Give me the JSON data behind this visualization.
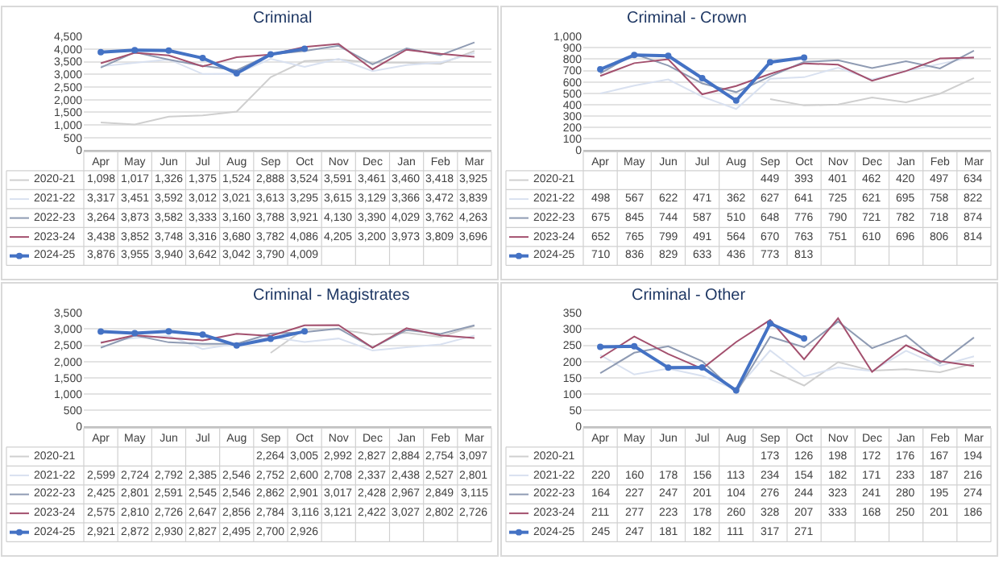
{
  "chart_data": [
    {
      "type": "line",
      "title": "Criminal",
      "categories": [
        "Apr",
        "May",
        "Jun",
        "Jul",
        "Aug",
        "Sep",
        "Oct",
        "Nov",
        "Dec",
        "Jan",
        "Feb",
        "Mar"
      ],
      "ylim": [
        0,
        4500
      ],
      "yticks": [
        0,
        500,
        {
          "value": 1000,
          "label": "1,000"
        },
        {
          "value": 1500,
          "label": "1,500"
        },
        {
          "value": 2000,
          "label": "2,000"
        },
        {
          "value": 2500,
          "label": "2,500"
        },
        {
          "value": 3000,
          "label": "3,000"
        },
        {
          "value": 3500,
          "label": "3,500"
        },
        {
          "value": 4000,
          "label": "4,000"
        },
        {
          "value": 4500,
          "label": "4,500"
        }
      ],
      "grid": "y",
      "legend": "bottom",
      "marker": "none",
      "series": [
        {
          "name": "2020-21",
          "color": "#cfcfcf",
          "values": [
            1098,
            1017,
            1326,
            1375,
            1524,
            2888,
            3524,
            3591,
            3461,
            3460,
            3418,
            3925
          ],
          "value_labels": [
            "1,098",
            "1,017",
            "1,326",
            "1,375",
            "1,524",
            "2,888",
            "3,524",
            "3,591",
            "3,461",
            "3,460",
            "3,418",
            "3,925"
          ]
        },
        {
          "name": "2021-22",
          "color": "#d9e1f0",
          "values": [
            3317,
            3451,
            3592,
            3012,
            3021,
            3613,
            3295,
            3615,
            3129,
            3366,
            3472,
            3839
          ],
          "value_labels": [
            "3,317",
            "3,451",
            "3,592",
            "3,012",
            "3,021",
            "3,613",
            "3,295",
            "3,615",
            "3,129",
            "3,366",
            "3,472",
            "3,839"
          ]
        },
        {
          "name": "2022-23",
          "color": "#8f9bb3",
          "values": [
            3264,
            3873,
            3582,
            3333,
            3160,
            3788,
            3921,
            4130,
            3390,
            4029,
            3762,
            4263
          ],
          "value_labels": [
            "3,264",
            "3,873",
            "3,582",
            "3,333",
            "3,160",
            "3,788",
            "3,921",
            "4,130",
            "3,390",
            "4,029",
            "3,762",
            "4,263"
          ]
        },
        {
          "name": "2023-24",
          "color": "#a3506e",
          "values": [
            3438,
            3852,
            3748,
            3316,
            3680,
            3782,
            4086,
            4205,
            3200,
            3973,
            3809,
            3696
          ],
          "value_labels": [
            "3,438",
            "3,852",
            "3,748",
            "3,316",
            "3,680",
            "3,782",
            "4,086",
            "4,205",
            "3,200",
            "3,973",
            "3,809",
            "3,696"
          ]
        },
        {
          "name": "2024-25",
          "color": "#4472c4",
          "marker": "circle",
          "values": [
            3876,
            3955,
            3940,
            3642,
            3042,
            3790,
            4009,
            null,
            null,
            null,
            null,
            null
          ],
          "value_labels": [
            "3,876",
            "3,955",
            "3,940",
            "3,642",
            "3,042",
            "3,790",
            "4,009",
            null,
            null,
            null,
            null,
            null
          ]
        }
      ]
    },
    {
      "type": "line",
      "title": "Criminal - Crown",
      "categories": [
        "Apr",
        "May",
        "Jun",
        "Jul",
        "Aug",
        "Sep",
        "Oct",
        "Nov",
        "Dec",
        "Jan",
        "Feb",
        "Mar"
      ],
      "ylim": [
        0,
        1000
      ],
      "yticks": [
        0,
        100,
        200,
        300,
        400,
        500,
        600,
        700,
        800,
        900,
        {
          "value": 1000,
          "label": "1,000"
        }
      ],
      "grid": "y",
      "legend": "bottom",
      "data_labels": true,
      "marker": "none",
      "series": [
        {
          "name": "2020-21",
          "color": "#cfcfcf",
          "values": [
            null,
            null,
            null,
            null,
            null,
            449,
            393,
            401,
            462,
            420,
            497,
            634
          ]
        },
        {
          "name": "2021-22",
          "color": "#d9e1f0",
          "values": [
            498,
            567,
            622,
            471,
            362,
            627,
            641,
            725,
            621,
            695,
            758,
            822
          ]
        },
        {
          "name": "2022-23",
          "color": "#8f9bb3",
          "values": [
            675,
            845,
            744,
            587,
            510,
            648,
            776,
            790,
            721,
            782,
            718,
            874
          ]
        },
        {
          "name": "2023-24",
          "color": "#a3506e",
          "values": [
            652,
            765,
            799,
            491,
            564,
            670,
            763,
            751,
            610,
            696,
            806,
            814
          ]
        },
        {
          "name": "2024-25",
          "color": "#4472c4",
          "marker": "circle",
          "values": [
            710,
            836,
            829,
            633,
            436,
            773,
            813,
            null,
            null,
            null,
            null,
            null
          ]
        }
      ]
    },
    {
      "type": "line",
      "title": "Criminal - Magistrates",
      "categories": [
        "Apr",
        "May",
        "Jun",
        "Jul",
        "Aug",
        "Sep",
        "Oct",
        "Nov",
        "Dec",
        "Jan",
        "Feb",
        "Mar"
      ],
      "ylim": [
        0,
        3500
      ],
      "yticks": [
        0,
        500,
        {
          "value": 1000,
          "label": "1,000"
        },
        {
          "value": 1500,
          "label": "1,500"
        },
        {
          "value": 2000,
          "label": "2,000"
        },
        {
          "value": 2500,
          "label": "2,500"
        },
        {
          "value": 3000,
          "label": "3,000"
        },
        {
          "value": 3500,
          "label": "3,500"
        }
      ],
      "grid": "y",
      "legend": "bottom",
      "marker": "none",
      "series": [
        {
          "name": "2020-21",
          "color": "#cfcfcf",
          "values": [
            null,
            null,
            null,
            null,
            null,
            2264,
            3005,
            2992,
            2827,
            2884,
            2754,
            3097
          ],
          "value_labels": [
            null,
            null,
            null,
            null,
            null,
            "2,264",
            "3,005",
            "2,992",
            "2,827",
            "2,884",
            "2,754",
            "3,097"
          ]
        },
        {
          "name": "2021-22",
          "color": "#d9e1f0",
          "values": [
            2599,
            2724,
            2792,
            2385,
            2546,
            2752,
            2600,
            2708,
            2337,
            2438,
            2527,
            2801
          ],
          "value_labels": [
            "2,599",
            "2,724",
            "2,792",
            "2,385",
            "2,546",
            "2,752",
            "2,600",
            "2,708",
            "2,337",
            "2,438",
            "2,527",
            "2,801"
          ]
        },
        {
          "name": "2022-23",
          "color": "#8f9bb3",
          "values": [
            2425,
            2801,
            2591,
            2545,
            2546,
            2862,
            2901,
            3017,
            2428,
            2967,
            2849,
            3115
          ],
          "value_labels": [
            "2,425",
            "2,801",
            "2,591",
            "2,545",
            "2,546",
            "2,862",
            "2,901",
            "3,017",
            "2,428",
            "2,967",
            "2,849",
            "3,115"
          ]
        },
        {
          "name": "2023-24",
          "color": "#a3506e",
          "values": [
            2575,
            2810,
            2726,
            2647,
            2856,
            2784,
            3116,
            3121,
            2422,
            3027,
            2802,
            2726
          ],
          "value_labels": [
            "2,575",
            "2,810",
            "2,726",
            "2,647",
            "2,856",
            "2,784",
            "3,116",
            "3,121",
            "2,422",
            "3,027",
            "2,802",
            "2,726"
          ]
        },
        {
          "name": "2024-25",
          "color": "#4472c4",
          "marker": "circle",
          "values": [
            2921,
            2872,
            2930,
            2827,
            2495,
            2700,
            2926,
            null,
            null,
            null,
            null,
            null
          ],
          "value_labels": [
            "2,921",
            "2,872",
            "2,930",
            "2,827",
            "2,495",
            "2,700",
            "2,926",
            null,
            null,
            null,
            null,
            null
          ]
        }
      ]
    },
    {
      "type": "line",
      "title": "Criminal - Other",
      "categories": [
        "Apr",
        "May",
        "Jun",
        "Jul",
        "Aug",
        "Sep",
        "Oct",
        "Nov",
        "Dec",
        "Jan",
        "Feb",
        "Mar"
      ],
      "ylim": [
        0,
        350
      ],
      "yticks": [
        0,
        50,
        100,
        150,
        200,
        250,
        300,
        350
      ],
      "grid": "y",
      "legend": "bottom",
      "data_labels": true,
      "marker": "none",
      "series": [
        {
          "name": "2020-21",
          "color": "#cfcfcf",
          "values": [
            null,
            null,
            null,
            null,
            null,
            173,
            126,
            198,
            172,
            176,
            167,
            194
          ]
        },
        {
          "name": "2021-22",
          "color": "#d9e1f0",
          "values": [
            220,
            160,
            178,
            156,
            113,
            234,
            154,
            182,
            171,
            233,
            187,
            216
          ]
        },
        {
          "name": "2022-23",
          "color": "#8f9bb3",
          "values": [
            164,
            227,
            247,
            201,
            104,
            276,
            244,
            323,
            241,
            280,
            195,
            274
          ]
        },
        {
          "name": "2023-24",
          "color": "#a3506e",
          "values": [
            211,
            277,
            223,
            178,
            260,
            328,
            207,
            333,
            168,
            250,
            201,
            186
          ]
        },
        {
          "name": "2024-25",
          "color": "#4472c4",
          "marker": "circle",
          "values": [
            245,
            247,
            181,
            182,
            111,
            317,
            271,
            null,
            null,
            null,
            null,
            null
          ]
        }
      ]
    }
  ]
}
